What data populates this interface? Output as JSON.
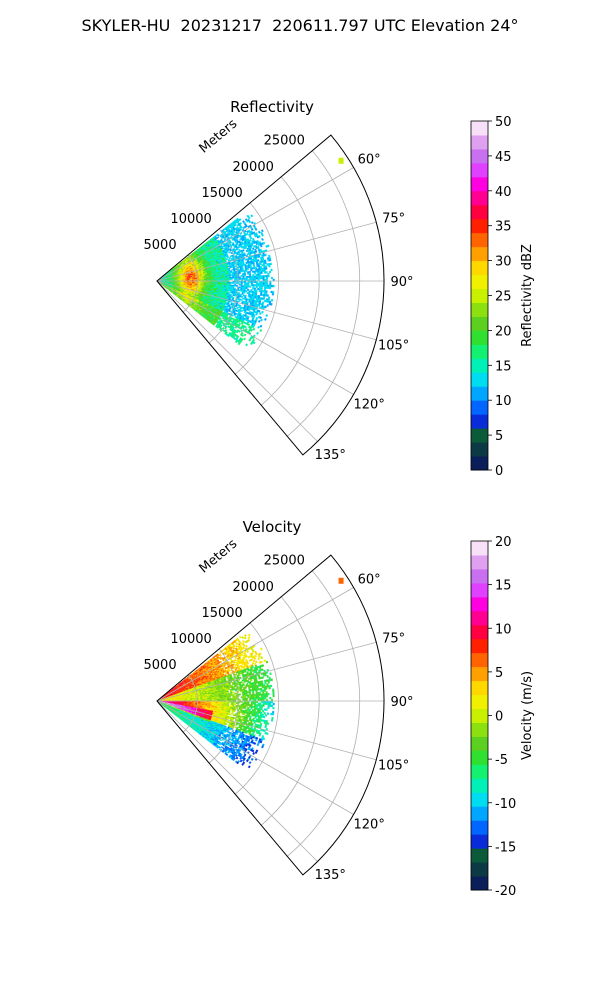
{
  "figure": {
    "suptitle": "SKYLER-HU  20231217  220611.797 UTC Elevation 24°"
  },
  "chart_data": [
    {
      "type": "polar-sector",
      "title": "Reflectivity",
      "radial_label": "Meters",
      "r_max": 28000,
      "r_ticks": [
        5000,
        10000,
        15000,
        20000,
        25000
      ],
      "theta_range_deg": [
        50,
        140
      ],
      "theta_ticks_deg": [
        60,
        75,
        90,
        105,
        120,
        135
      ],
      "theta_tick_labels": [
        "60°",
        "75°",
        "90°",
        "105°",
        "120°",
        "135°"
      ],
      "grid": true,
      "colorbar": {
        "label": "Reflectivity dBZ",
        "min": 0,
        "max": 50,
        "ticks": [
          0,
          5,
          10,
          15,
          20,
          25,
          30,
          35,
          40,
          45,
          50
        ],
        "colors": [
          "#0a1e5a",
          "#0c3a44",
          "#0b5a3a",
          "#0a2cd8",
          "#0066ff",
          "#00a6ff",
          "#00dcf0",
          "#00f0b8",
          "#14f070",
          "#30e030",
          "#5cd020",
          "#8ce010",
          "#c8f000",
          "#f0f000",
          "#ffd800",
          "#ffa000",
          "#ff6400",
          "#ff2000",
          "#ff0040",
          "#ff0090",
          "#ff00e0",
          "#e040ff",
          "#c870f0",
          "#e0a0f0",
          "#f8e0f8"
        ]
      },
      "echo": {
        "theta_extent_deg": [
          52,
          128
        ],
        "r_extent_m": [
          0,
          14500
        ],
        "far_target": {
          "r_m": 27000,
          "theta_deg": 57
        }
      }
    },
    {
      "type": "polar-sector",
      "title": "Velocity",
      "radial_label": "Meters",
      "r_max": 28000,
      "r_ticks": [
        5000,
        10000,
        15000,
        20000,
        25000
      ],
      "theta_range_deg": [
        50,
        140
      ],
      "theta_ticks_deg": [
        60,
        75,
        90,
        105,
        120,
        135
      ],
      "theta_tick_labels": [
        "60°",
        "75°",
        "90°",
        "105°",
        "120°",
        "135°"
      ],
      "grid": true,
      "colorbar": {
        "label": "Velocity (m/s)",
        "min": -20,
        "max": 20,
        "ticks": [
          -20,
          -15,
          -10,
          -5,
          0,
          5,
          10,
          15,
          20
        ],
        "colors": [
          "#0a1e5a",
          "#0c3a44",
          "#0b5a3a",
          "#0a2cd8",
          "#0066ff",
          "#00a6ff",
          "#00dcf0",
          "#00f0b8",
          "#14f070",
          "#30e030",
          "#5cd020",
          "#8ce010",
          "#c8f000",
          "#f0f000",
          "#ffd800",
          "#ffa000",
          "#ff6400",
          "#ff2000",
          "#ff0040",
          "#ff0090",
          "#ff00e0",
          "#e040ff",
          "#c870f0",
          "#e0a0f0",
          "#f8e0f8"
        ]
      },
      "echo": {
        "theta_extent_deg": [
          52,
          128
        ],
        "r_extent_m": [
          0,
          14500
        ],
        "far_target": {
          "r_m": 27000,
          "theta_deg": 57
        }
      }
    }
  ]
}
